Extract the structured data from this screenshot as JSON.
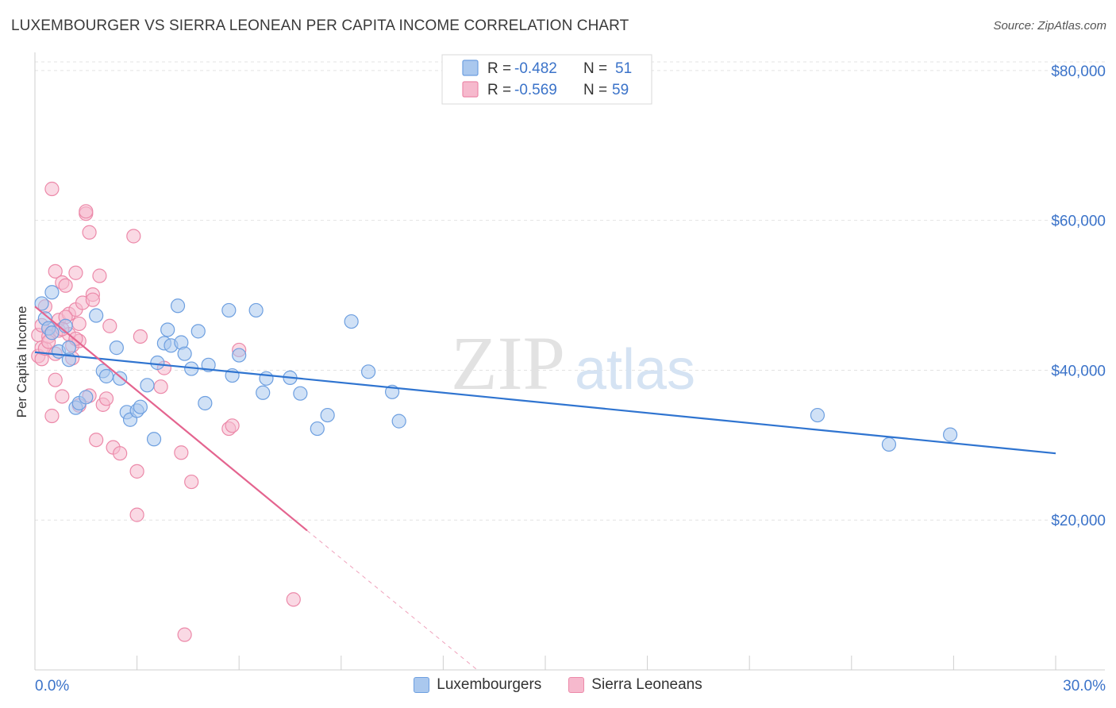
{
  "header": {
    "title": "LUXEMBOURGER VS SIERRA LEONEAN PER CAPITA INCOME CORRELATION CHART",
    "source": "Source: ZipAtlas.com"
  },
  "watermark": {
    "zip": "ZIP",
    "atlas": "atlas"
  },
  "colors": {
    "blue_fill": "#aac8ee",
    "blue_stroke": "#6d9fe0",
    "blue_line": "#2f74d0",
    "pink_fill": "#f6b9cd",
    "pink_stroke": "#ec89a9",
    "pink_line": "#e4648f",
    "axis_text": "#3b73c9",
    "grid": "#e3e3e3"
  },
  "legend": {
    "entries": [
      {
        "r_label": "R =",
        "r_value": "-0.482",
        "n_label": "N =",
        "n_value": "51"
      },
      {
        "r_label": "R =",
        "r_value": "-0.569",
        "n_label": "N =",
        "n_value": "59"
      }
    ]
  },
  "bottom_legend": {
    "items": [
      "Luxembourgers",
      "Sierra Leoneans"
    ]
  },
  "chart_data": {
    "type": "scatter",
    "title": "LUXEMBOURGER VS SIERRA LEONEAN PER CAPITA INCOME CORRELATION CHART",
    "xlabel": "",
    "ylabel": "Per Capita Income",
    "xlim": [
      0,
      30
    ],
    "ylim": [
      0,
      82000
    ],
    "x_tick_labels": [
      "0.0%",
      "30.0%"
    ],
    "y_ticks": [
      20000,
      40000,
      60000,
      80000
    ],
    "y_tick_labels": [
      "$20,000",
      "$40,000",
      "$60,000",
      "$80,000"
    ],
    "grid": true,
    "legend_position": "top-center",
    "series": [
      {
        "name": "Luxembourgers",
        "r": -0.482,
        "n": 51,
        "trend": {
          "x": [
            0,
            30
          ],
          "y": [
            42400,
            28900
          ]
        },
        "points": [
          [
            0.2,
            48900
          ],
          [
            0.3,
            46900
          ],
          [
            0.4,
            45600
          ],
          [
            0.5,
            50400
          ],
          [
            0.7,
            42500
          ],
          [
            0.9,
            45900
          ],
          [
            1.0,
            41400
          ],
          [
            1.2,
            35000
          ],
          [
            1.3,
            35600
          ],
          [
            1.5,
            36400
          ],
          [
            1.8,
            47300
          ],
          [
            2.0,
            39900
          ],
          [
            2.1,
            39200
          ],
          [
            2.4,
            43000
          ],
          [
            2.5,
            38900
          ],
          [
            2.7,
            34400
          ],
          [
            2.8,
            33400
          ],
          [
            3.0,
            34600
          ],
          [
            3.1,
            35100
          ],
          [
            3.3,
            38000
          ],
          [
            3.5,
            30800
          ],
          [
            3.8,
            43600
          ],
          [
            3.9,
            45400
          ],
          [
            4.0,
            43300
          ],
          [
            4.2,
            48600
          ],
          [
            4.3,
            43700
          ],
          [
            4.4,
            42200
          ],
          [
            4.6,
            40200
          ],
          [
            4.8,
            45200
          ],
          [
            5.0,
            35600
          ],
          [
            5.1,
            40700
          ],
          [
            5.7,
            48000
          ],
          [
            5.8,
            39300
          ],
          [
            6.5,
            48000
          ],
          [
            6.7,
            37000
          ],
          [
            6.8,
            38900
          ],
          [
            7.5,
            39000
          ],
          [
            7.8,
            36900
          ],
          [
            8.3,
            32200
          ],
          [
            8.6,
            34000
          ],
          [
            9.3,
            46500
          ],
          [
            9.8,
            39800
          ],
          [
            10.5,
            37100
          ],
          [
            10.7,
            33200
          ],
          [
            23.0,
            34000
          ],
          [
            25.1,
            30100
          ],
          [
            26.9,
            31400
          ],
          [
            0.5,
            45000
          ],
          [
            1.0,
            43000
          ],
          [
            6.0,
            42000
          ],
          [
            3.6,
            41000
          ]
        ]
      },
      {
        "name": "Sierra Leoneans",
        "r": -0.569,
        "n": 59,
        "trend_solid": {
          "x": [
            0,
            8
          ],
          "y": [
            48500,
            18600
          ]
        },
        "trend_dashed": {
          "x": [
            8,
            13
          ],
          "y": [
            18600,
            0
          ]
        },
        "points": [
          [
            0.1,
            44700
          ],
          [
            0.1,
            41900
          ],
          [
            0.2,
            43000
          ],
          [
            0.2,
            41500
          ],
          [
            0.3,
            48500
          ],
          [
            0.3,
            42900
          ],
          [
            0.4,
            45600
          ],
          [
            0.4,
            44500
          ],
          [
            0.5,
            33900
          ],
          [
            0.5,
            64200
          ],
          [
            0.6,
            53200
          ],
          [
            0.6,
            38700
          ],
          [
            0.7,
            46700
          ],
          [
            0.7,
            45300
          ],
          [
            0.8,
            36500
          ],
          [
            0.8,
            51700
          ],
          [
            0.9,
            51300
          ],
          [
            1.0,
            47500
          ],
          [
            1.0,
            44800
          ],
          [
            1.1,
            43300
          ],
          [
            1.1,
            41600
          ],
          [
            1.2,
            48100
          ],
          [
            1.2,
            53000
          ],
          [
            1.3,
            46200
          ],
          [
            1.3,
            35300
          ],
          [
            1.4,
            49000
          ],
          [
            1.5,
            60900
          ],
          [
            1.5,
            61200
          ],
          [
            1.6,
            36600
          ],
          [
            1.6,
            58400
          ],
          [
            1.7,
            50100
          ],
          [
            1.7,
            49400
          ],
          [
            1.8,
            30700
          ],
          [
            1.9,
            52600
          ],
          [
            2.0,
            35400
          ],
          [
            2.1,
            36200
          ],
          [
            2.2,
            45900
          ],
          [
            2.3,
            29700
          ],
          [
            2.5,
            28900
          ],
          [
            2.9,
            57900
          ],
          [
            3.0,
            26500
          ],
          [
            3.0,
            20700
          ],
          [
            3.1,
            44500
          ],
          [
            3.7,
            37800
          ],
          [
            3.8,
            40300
          ],
          [
            4.3,
            29000
          ],
          [
            4.4,
            4700
          ],
          [
            4.6,
            25100
          ],
          [
            5.7,
            32200
          ],
          [
            5.8,
            32600
          ],
          [
            6.0,
            42700
          ],
          [
            7.6,
            9400
          ],
          [
            0.9,
            47100
          ],
          [
            1.3,
            43900
          ],
          [
            0.6,
            42200
          ],
          [
            0.2,
            46000
          ],
          [
            0.8,
            45500
          ],
          [
            1.2,
            44200
          ],
          [
            0.4,
            43800
          ]
        ]
      }
    ]
  }
}
